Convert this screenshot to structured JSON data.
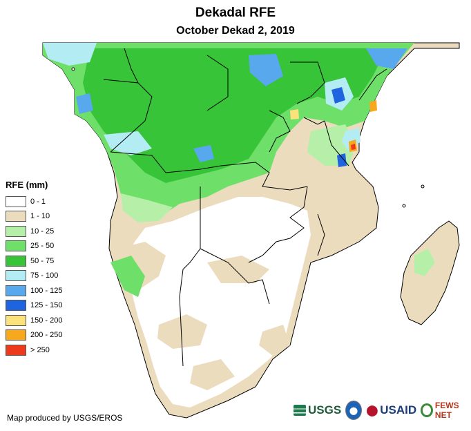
{
  "header": {
    "title": "Dekadal RFE",
    "subtitle": "October Dekad 2, 2019"
  },
  "legend": {
    "title": "RFE (mm)",
    "items": [
      {
        "label": "0 - 1",
        "color": "#ffffff"
      },
      {
        "label": "1 - 10",
        "color": "#ecdcbe"
      },
      {
        "label": "10 - 25",
        "color": "#b6f0a8"
      },
      {
        "label": "25 - 50",
        "color": "#6ee06a"
      },
      {
        "label": "50 - 75",
        "color": "#38c438"
      },
      {
        "label": "75 - 100",
        "color": "#b4ecf4"
      },
      {
        "label": "100 - 125",
        "color": "#58a8ee"
      },
      {
        "label": "125 - 150",
        "color": "#1e63e0"
      },
      {
        "label": "150 - 200",
        "color": "#fbe27a"
      },
      {
        "label": "200 - 250",
        "color": "#f8a81c"
      },
      {
        "label": "> 250",
        "color": "#ee3a1c"
      }
    ]
  },
  "footer": {
    "credit": "Map produced by USGS/EROS",
    "logo_usgs": "USGS",
    "logo_usaid": "USAID",
    "logo_fews": "FEWS NET"
  }
}
